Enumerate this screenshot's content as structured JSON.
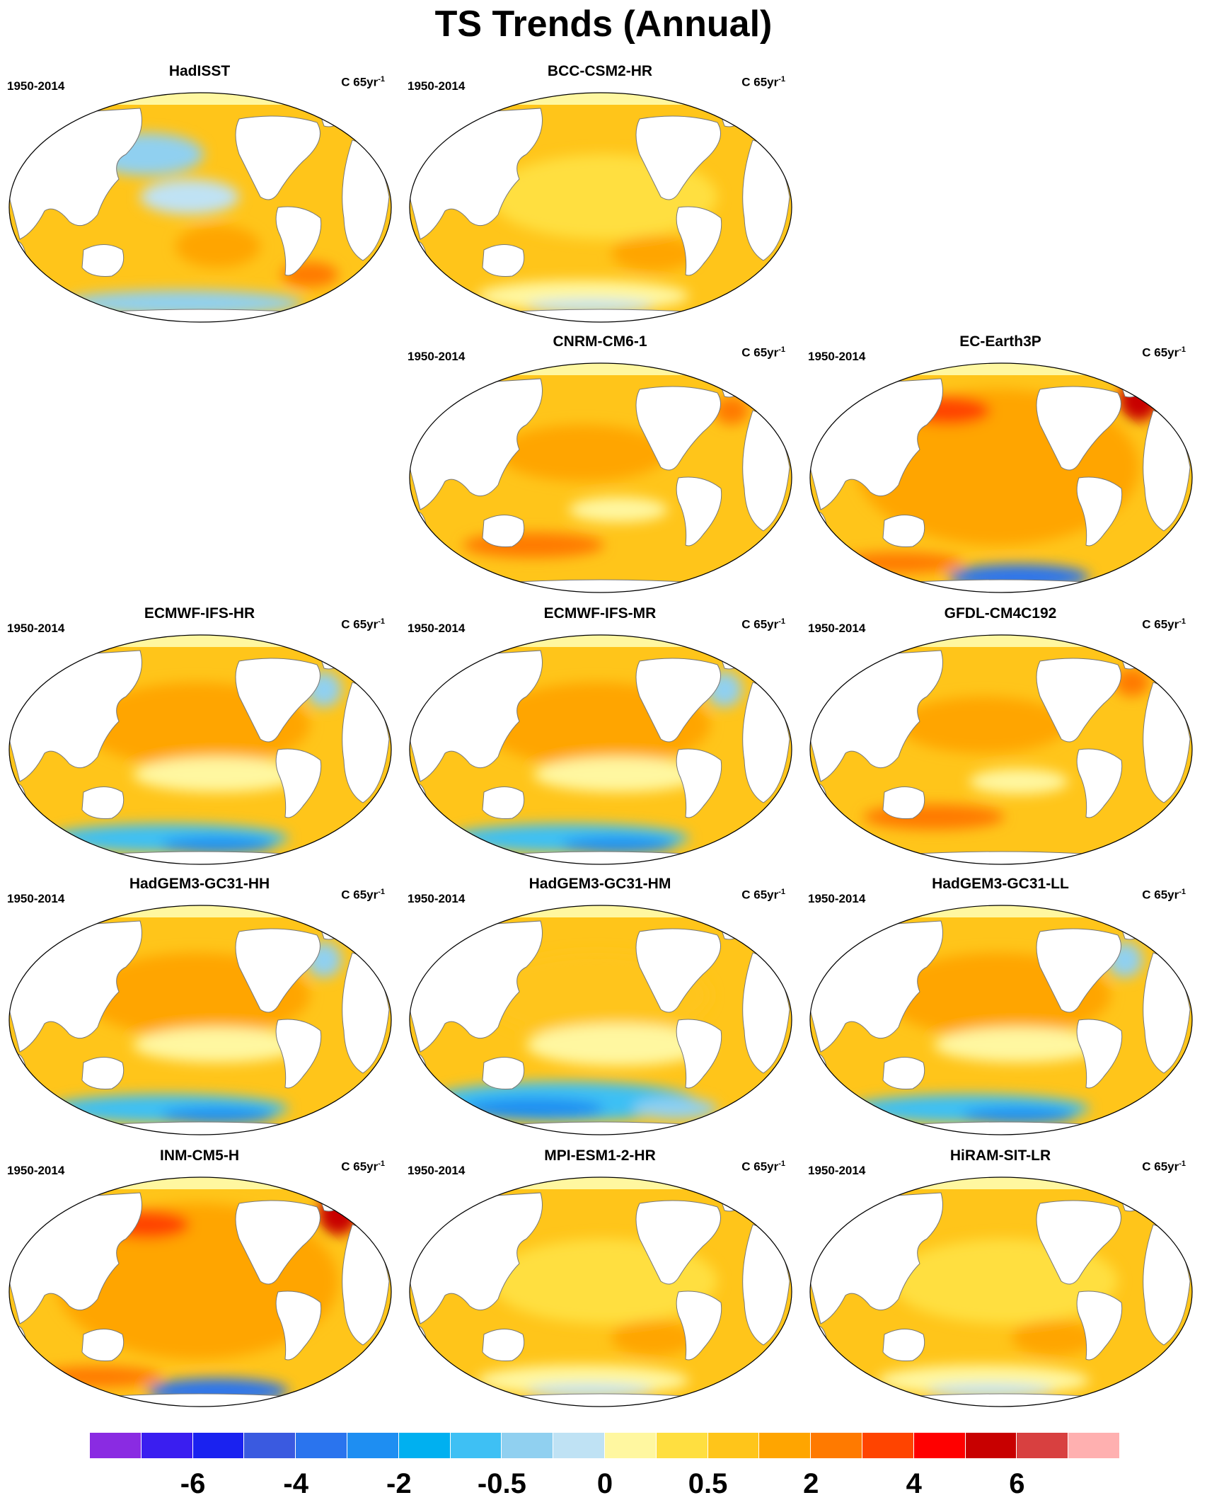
{
  "figure": {
    "title": "TS Trends (Annual)",
    "period": "1950-2014",
    "units_base": "C 65yr",
    "units_exponent": "-1"
  },
  "panels": [
    {
      "name": "HadISST",
      "variant": "obs"
    },
    {
      "name": "BCC-CSM2-HR",
      "variant": "mild"
    },
    {
      "name": "CNRM-CM6-1",
      "variant": "warm"
    },
    {
      "name": "EC-Earth3P",
      "variant": "hot"
    },
    {
      "name": "ECMWF-IFS-HR",
      "variant": "southcool"
    },
    {
      "name": "ECMWF-IFS-MR",
      "variant": "southcool"
    },
    {
      "name": "GFDL-CM4C192",
      "variant": "warm"
    },
    {
      "name": "HadGEM3-GC31-HH",
      "variant": "southcool"
    },
    {
      "name": "HadGEM3-GC31-HM",
      "variant": "southcold"
    },
    {
      "name": "HadGEM3-GC31-LL",
      "variant": "southcool"
    },
    {
      "name": "INM-CM5-H",
      "variant": "hot"
    },
    {
      "name": "MPI-ESM1-2-HR",
      "variant": "mild"
    },
    {
      "name": "HiRAM-SIT-LR",
      "variant": "mild"
    }
  ],
  "colorbar": {
    "colors": [
      "#8a2be2",
      "#3a1ef0",
      "#1a22f0",
      "#3a5ae0",
      "#2a74ee",
      "#1e8ef2",
      "#00b0f0",
      "#3ec0f4",
      "#90d0f0",
      "#bfe2f4",
      "#fff7a0",
      "#ffdf40",
      "#ffc51a",
      "#ffa500",
      "#ff7a00",
      "#ff4400",
      "#ff0000",
      "#c80000",
      "#d84040",
      "#ffb0b0"
    ],
    "tick_labels": [
      "-6",
      "-4",
      "-2",
      "-0.5",
      "0",
      "0.5",
      "2",
      "4",
      "6"
    ]
  },
  "colors": {
    "land": "#ffffff",
    "ocean_base": "#ffc51a",
    "coast": "#777777"
  }
}
